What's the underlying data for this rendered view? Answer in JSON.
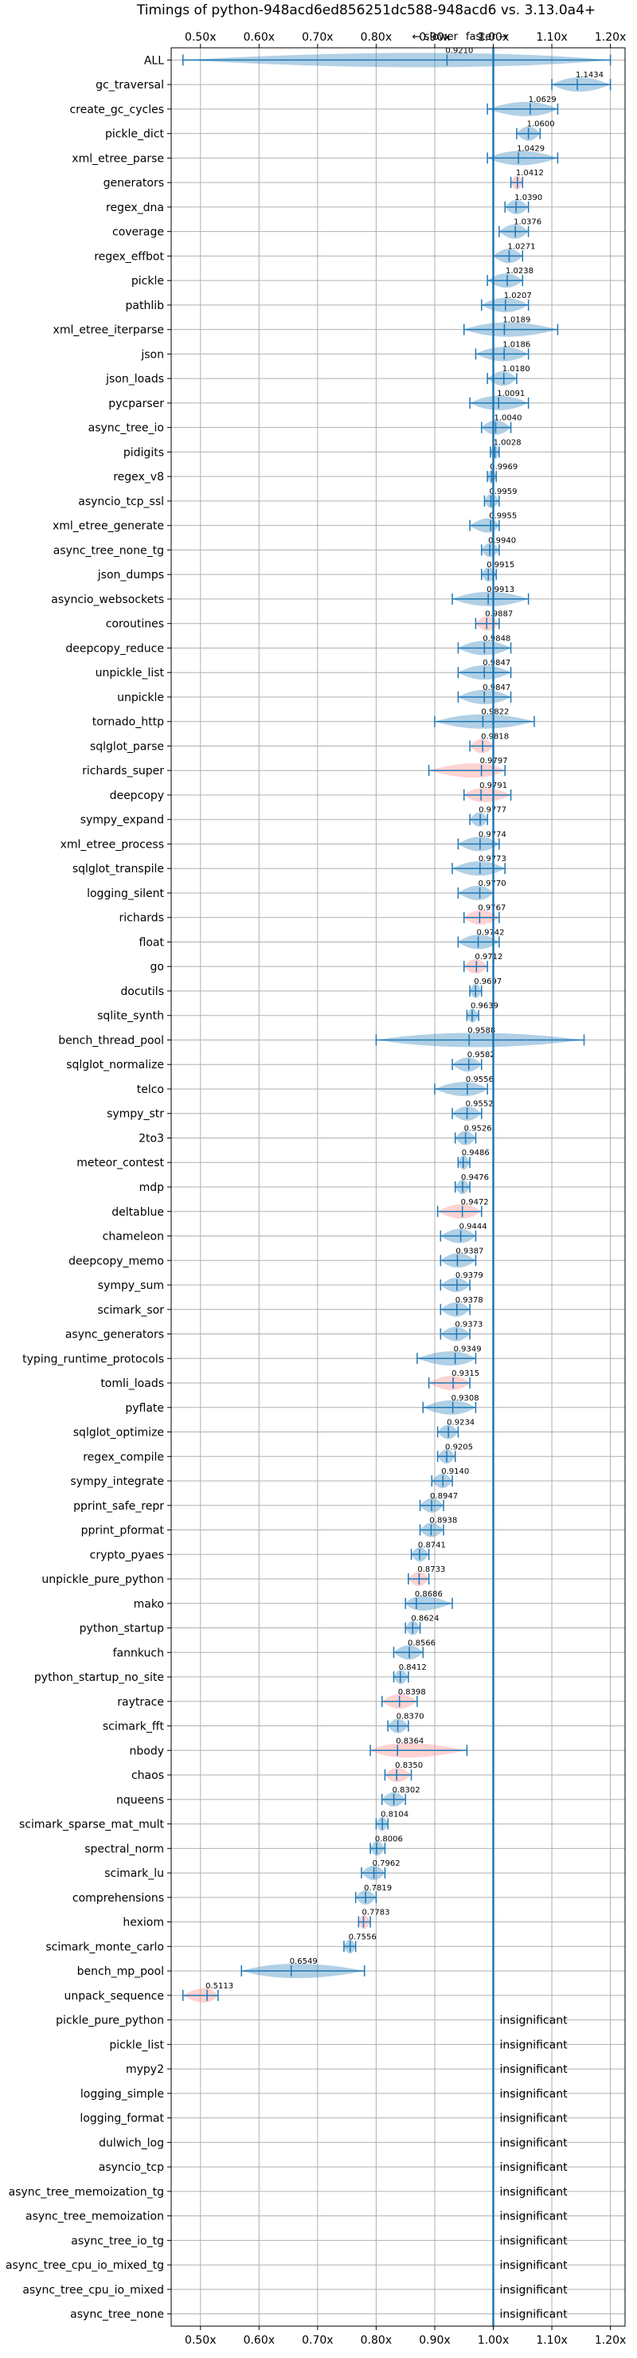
{
  "colors": {
    "normal": "#1f77b4",
    "highlight": "#ff7f7f",
    "grid": "#b0b0b0",
    "ref": "#1f77b4"
  },
  "chart_data": {
    "type": "violin",
    "title": "Timings of python-948acd6ed856251dc588-948acd6 vs. 3.13.0a4+",
    "subtitle_left": "← slower",
    "subtitle_right": "faster →",
    "xlim": [
      0.45,
      1.225
    ],
    "xticks": [
      0.5,
      0.6,
      0.7,
      0.8,
      0.9,
      1.0,
      1.1,
      1.2
    ],
    "xtick_labels": [
      "0.50x",
      "0.60x",
      "0.70x",
      "0.80x",
      "0.90x",
      "1.00x",
      "1.10x",
      "1.20x"
    ],
    "reference": 1.0,
    "grid": true,
    "insignificant_label": "insignificant",
    "benchmarks": [
      {
        "name": "ALL",
        "value": 0.921,
        "label": "0.9210",
        "lo": 0.47,
        "hi": 1.2,
        "width": 0.2,
        "highlight": false
      },
      {
        "name": "gc_traversal",
        "value": 1.1434,
        "label": "1.1434",
        "lo": 1.1,
        "hi": 1.2,
        "width": 0.3,
        "highlight": false
      },
      {
        "name": "create_gc_cycles",
        "value": 1.0629,
        "label": "1.0629",
        "lo": 0.99,
        "hi": 1.11,
        "width": 0.3,
        "highlight": false
      },
      {
        "name": "pickle_dict",
        "value": 1.06,
        "label": "1.0600",
        "lo": 1.04,
        "hi": 1.08,
        "width": 0.3,
        "highlight": false
      },
      {
        "name": "xml_etree_parse",
        "value": 1.0429,
        "label": "1.0429",
        "lo": 0.99,
        "hi": 1.11,
        "width": 0.3,
        "highlight": false
      },
      {
        "name": "generators",
        "value": 1.0412,
        "label": "1.0412",
        "lo": 1.03,
        "hi": 1.05,
        "width": 0.3,
        "highlight": true
      },
      {
        "name": "regex_dna",
        "value": 1.039,
        "label": "1.0390",
        "lo": 1.02,
        "hi": 1.06,
        "width": 0.3,
        "highlight": false
      },
      {
        "name": "coverage",
        "value": 1.0376,
        "label": "1.0376",
        "lo": 1.01,
        "hi": 1.06,
        "width": 0.3,
        "highlight": false
      },
      {
        "name": "regex_effbot",
        "value": 1.0271,
        "label": "1.0271",
        "lo": 1.0,
        "hi": 1.05,
        "width": 0.3,
        "highlight": false
      },
      {
        "name": "pickle",
        "value": 1.0238,
        "label": "1.0238",
        "lo": 0.99,
        "hi": 1.05,
        "width": 0.3,
        "highlight": false
      },
      {
        "name": "pathlib",
        "value": 1.0207,
        "label": "1.0207",
        "lo": 0.98,
        "hi": 1.06,
        "width": 0.3,
        "highlight": false
      },
      {
        "name": "xml_etree_iterparse",
        "value": 1.0189,
        "label": "1.0189",
        "lo": 0.95,
        "hi": 1.11,
        "width": 0.3,
        "highlight": false
      },
      {
        "name": "json",
        "value": 1.0186,
        "label": "1.0186",
        "lo": 0.97,
        "hi": 1.06,
        "width": 0.3,
        "highlight": false
      },
      {
        "name": "json_loads",
        "value": 1.018,
        "label": "1.0180",
        "lo": 0.99,
        "hi": 1.04,
        "width": 0.3,
        "highlight": false
      },
      {
        "name": "pycparser",
        "value": 1.0091,
        "label": "1.0091",
        "lo": 0.96,
        "hi": 1.06,
        "width": 0.3,
        "highlight": false
      },
      {
        "name": "async_tree_io",
        "value": 1.004,
        "label": "1.0040",
        "lo": 0.98,
        "hi": 1.03,
        "width": 0.3,
        "highlight": false
      },
      {
        "name": "pidigits",
        "value": 1.0028,
        "label": "1.0028",
        "lo": 0.995,
        "hi": 1.01,
        "width": 0.3,
        "highlight": false
      },
      {
        "name": "regex_v8",
        "value": 0.9969,
        "label": "0.9969",
        "lo": 0.99,
        "hi": 1.005,
        "width": 0.3,
        "highlight": false
      },
      {
        "name": "asyncio_tcp_ssl",
        "value": 0.9959,
        "label": "0.9959",
        "lo": 0.985,
        "hi": 1.01,
        "width": 0.3,
        "highlight": false
      },
      {
        "name": "xml_etree_generate",
        "value": 0.9955,
        "label": "0.9955",
        "lo": 0.96,
        "hi": 1.01,
        "width": 0.3,
        "highlight": false
      },
      {
        "name": "async_tree_none_tg",
        "value": 0.994,
        "label": "0.9940",
        "lo": 0.98,
        "hi": 1.01,
        "width": 0.3,
        "highlight": false
      },
      {
        "name": "json_dumps",
        "value": 0.9915,
        "label": "0.9915",
        "lo": 0.98,
        "hi": 1.005,
        "width": 0.3,
        "highlight": false
      },
      {
        "name": "asyncio_websockets",
        "value": 0.9913,
        "label": "0.9913",
        "lo": 0.93,
        "hi": 1.06,
        "width": 0.3,
        "highlight": false
      },
      {
        "name": "coroutines",
        "value": 0.9887,
        "label": "0.9887",
        "lo": 0.97,
        "hi": 1.01,
        "width": 0.3,
        "highlight": true
      },
      {
        "name": "deepcopy_reduce",
        "value": 0.9848,
        "label": "0.9848",
        "lo": 0.94,
        "hi": 1.03,
        "width": 0.3,
        "highlight": false
      },
      {
        "name": "unpickle_list",
        "value": 0.9847,
        "label": "0.9847",
        "lo": 0.94,
        "hi": 1.03,
        "width": 0.3,
        "highlight": false
      },
      {
        "name": "unpickle",
        "value": 0.9847,
        "label": "0.9847",
        "lo": 0.94,
        "hi": 1.03,
        "width": 0.3,
        "highlight": false
      },
      {
        "name": "tornado_http",
        "value": 0.9822,
        "label": "0.9822",
        "lo": 0.9,
        "hi": 1.07,
        "width": 0.3,
        "highlight": false
      },
      {
        "name": "sqlglot_parse",
        "value": 0.9818,
        "label": "0.9818",
        "lo": 0.96,
        "hi": 1.0,
        "width": 0.3,
        "highlight": true
      },
      {
        "name": "richards_super",
        "value": 0.9797,
        "label": "0.9797",
        "lo": 0.89,
        "hi": 1.02,
        "width": 0.3,
        "highlight": true
      },
      {
        "name": "deepcopy",
        "value": 0.9791,
        "label": "0.9791",
        "lo": 0.95,
        "hi": 1.03,
        "width": 0.3,
        "highlight": true
      },
      {
        "name": "sympy_expand",
        "value": 0.9777,
        "label": "0.9777",
        "lo": 0.96,
        "hi": 0.99,
        "width": 0.3,
        "highlight": false
      },
      {
        "name": "xml_etree_process",
        "value": 0.9774,
        "label": "0.9774",
        "lo": 0.94,
        "hi": 1.01,
        "width": 0.3,
        "highlight": false
      },
      {
        "name": "sqlglot_transpile",
        "value": 0.9773,
        "label": "0.9773",
        "lo": 0.93,
        "hi": 1.02,
        "width": 0.3,
        "highlight": false
      },
      {
        "name": "logging_silent",
        "value": 0.977,
        "label": "0.9770",
        "lo": 0.94,
        "hi": 1.0,
        "width": 0.3,
        "highlight": false
      },
      {
        "name": "richards",
        "value": 0.9767,
        "label": "0.9767",
        "lo": 0.95,
        "hi": 1.01,
        "width": 0.3,
        "highlight": true
      },
      {
        "name": "float",
        "value": 0.9742,
        "label": "0.9742",
        "lo": 0.94,
        "hi": 1.01,
        "width": 0.3,
        "highlight": false
      },
      {
        "name": "go",
        "value": 0.9712,
        "label": "0.9712",
        "lo": 0.95,
        "hi": 0.99,
        "width": 0.3,
        "highlight": true
      },
      {
        "name": "docutils",
        "value": 0.9697,
        "label": "0.9697",
        "lo": 0.96,
        "hi": 0.98,
        "width": 0.3,
        "highlight": false
      },
      {
        "name": "sqlite_synth",
        "value": 0.9639,
        "label": "0.9639",
        "lo": 0.955,
        "hi": 0.975,
        "width": 0.3,
        "highlight": false
      },
      {
        "name": "bench_thread_pool",
        "value": 0.9588,
        "label": "0.9588",
        "lo": 0.8,
        "hi": 1.155,
        "width": 0.3,
        "highlight": false
      },
      {
        "name": "sqlglot_normalize",
        "value": 0.9582,
        "label": "0.9582",
        "lo": 0.93,
        "hi": 0.98,
        "width": 0.3,
        "highlight": false
      },
      {
        "name": "telco",
        "value": 0.9556,
        "label": "0.9556",
        "lo": 0.9,
        "hi": 0.99,
        "width": 0.3,
        "highlight": false
      },
      {
        "name": "sympy_str",
        "value": 0.9552,
        "label": "0.9552",
        "lo": 0.93,
        "hi": 0.98,
        "width": 0.3,
        "highlight": false
      },
      {
        "name": "2to3",
        "value": 0.9526,
        "label": "0.9526",
        "lo": 0.935,
        "hi": 0.97,
        "width": 0.3,
        "highlight": false
      },
      {
        "name": "meteor_contest",
        "value": 0.9486,
        "label": "0.9486",
        "lo": 0.94,
        "hi": 0.96,
        "width": 0.3,
        "highlight": false
      },
      {
        "name": "mdp",
        "value": 0.9476,
        "label": "0.9476",
        "lo": 0.935,
        "hi": 0.96,
        "width": 0.3,
        "highlight": false
      },
      {
        "name": "deltablue",
        "value": 0.9472,
        "label": "0.9472",
        "lo": 0.905,
        "hi": 0.98,
        "width": 0.3,
        "highlight": true
      },
      {
        "name": "chameleon",
        "value": 0.9444,
        "label": "0.9444",
        "lo": 0.91,
        "hi": 0.97,
        "width": 0.3,
        "highlight": false
      },
      {
        "name": "deepcopy_memo",
        "value": 0.9387,
        "label": "0.9387",
        "lo": 0.91,
        "hi": 0.97,
        "width": 0.3,
        "highlight": false
      },
      {
        "name": "sympy_sum",
        "value": 0.9379,
        "label": "0.9379",
        "lo": 0.91,
        "hi": 0.96,
        "width": 0.3,
        "highlight": false
      },
      {
        "name": "scimark_sor",
        "value": 0.9378,
        "label": "0.9378",
        "lo": 0.91,
        "hi": 0.96,
        "width": 0.3,
        "highlight": false
      },
      {
        "name": "async_generators",
        "value": 0.9373,
        "label": "0.9373",
        "lo": 0.91,
        "hi": 0.96,
        "width": 0.3,
        "highlight": false
      },
      {
        "name": "typing_runtime_protocols",
        "value": 0.9349,
        "label": "0.9349",
        "lo": 0.87,
        "hi": 0.97,
        "width": 0.3,
        "highlight": false
      },
      {
        "name": "tomli_loads",
        "value": 0.9315,
        "label": "0.9315",
        "lo": 0.89,
        "hi": 0.96,
        "width": 0.3,
        "highlight": true
      },
      {
        "name": "pyflate",
        "value": 0.9308,
        "label": "0.9308",
        "lo": 0.88,
        "hi": 0.97,
        "width": 0.3,
        "highlight": false
      },
      {
        "name": "sqlglot_optimize",
        "value": 0.9234,
        "label": "0.9234",
        "lo": 0.905,
        "hi": 0.94,
        "width": 0.3,
        "highlight": false
      },
      {
        "name": "regex_compile",
        "value": 0.9205,
        "label": "0.9205",
        "lo": 0.905,
        "hi": 0.935,
        "width": 0.3,
        "highlight": false
      },
      {
        "name": "sympy_integrate",
        "value": 0.914,
        "label": "0.9140",
        "lo": 0.895,
        "hi": 0.93,
        "width": 0.3,
        "highlight": false
      },
      {
        "name": "pprint_safe_repr",
        "value": 0.8947,
        "label": "0.8947",
        "lo": 0.875,
        "hi": 0.915,
        "width": 0.3,
        "highlight": false
      },
      {
        "name": "pprint_pformat",
        "value": 0.8938,
        "label": "0.8938",
        "lo": 0.875,
        "hi": 0.915,
        "width": 0.3,
        "highlight": false
      },
      {
        "name": "crypto_pyaes",
        "value": 0.8741,
        "label": "0.8741",
        "lo": 0.86,
        "hi": 0.89,
        "width": 0.3,
        "highlight": false
      },
      {
        "name": "unpickle_pure_python",
        "value": 0.8733,
        "label": "0.8733",
        "lo": 0.855,
        "hi": 0.89,
        "width": 0.3,
        "highlight": true
      },
      {
        "name": "mako",
        "value": 0.8686,
        "label": "0.8686",
        "lo": 0.85,
        "hi": 0.93,
        "width": 0.3,
        "highlight": false
      },
      {
        "name": "python_startup",
        "value": 0.8624,
        "label": "0.8624",
        "lo": 0.85,
        "hi": 0.875,
        "width": 0.3,
        "highlight": false
      },
      {
        "name": "fannkuch",
        "value": 0.8566,
        "label": "0.8566",
        "lo": 0.83,
        "hi": 0.88,
        "width": 0.3,
        "highlight": false
      },
      {
        "name": "python_startup_no_site",
        "value": 0.8412,
        "label": "0.8412",
        "lo": 0.83,
        "hi": 0.855,
        "width": 0.3,
        "highlight": false
      },
      {
        "name": "raytrace",
        "value": 0.8398,
        "label": "0.8398",
        "lo": 0.81,
        "hi": 0.87,
        "width": 0.3,
        "highlight": true
      },
      {
        "name": "scimark_fft",
        "value": 0.837,
        "label": "0.8370",
        "lo": 0.82,
        "hi": 0.855,
        "width": 0.3,
        "highlight": false
      },
      {
        "name": "nbody",
        "value": 0.8364,
        "label": "0.8364",
        "lo": 0.79,
        "hi": 0.955,
        "width": 0.3,
        "highlight": true
      },
      {
        "name": "chaos",
        "value": 0.835,
        "label": "0.8350",
        "lo": 0.815,
        "hi": 0.86,
        "width": 0.3,
        "highlight": true
      },
      {
        "name": "nqueens",
        "value": 0.8302,
        "label": "0.8302",
        "lo": 0.81,
        "hi": 0.85,
        "width": 0.3,
        "highlight": false
      },
      {
        "name": "scimark_sparse_mat_mult",
        "value": 0.8104,
        "label": "0.8104",
        "lo": 0.8,
        "hi": 0.82,
        "width": 0.3,
        "highlight": false
      },
      {
        "name": "spectral_norm",
        "value": 0.8006,
        "label": "0.8006",
        "lo": 0.79,
        "hi": 0.815,
        "width": 0.3,
        "highlight": false
      },
      {
        "name": "scimark_lu",
        "value": 0.7962,
        "label": "0.7962",
        "lo": 0.775,
        "hi": 0.815,
        "width": 0.3,
        "highlight": false
      },
      {
        "name": "comprehensions",
        "value": 0.7819,
        "label": "0.7819",
        "lo": 0.765,
        "hi": 0.8,
        "width": 0.3,
        "highlight": false
      },
      {
        "name": "hexiom",
        "value": 0.7783,
        "label": "0.7783",
        "lo": 0.77,
        "hi": 0.79,
        "width": 0.3,
        "highlight": true
      },
      {
        "name": "scimark_monte_carlo",
        "value": 0.7556,
        "label": "0.7556",
        "lo": 0.745,
        "hi": 0.765,
        "width": 0.3,
        "highlight": false
      },
      {
        "name": "bench_mp_pool",
        "value": 0.6549,
        "label": "0.6549",
        "lo": 0.57,
        "hi": 0.78,
        "width": 0.3,
        "highlight": false
      },
      {
        "name": "unpack_sequence",
        "value": 0.5113,
        "label": "0.5113",
        "lo": 0.47,
        "hi": 0.53,
        "width": 0.3,
        "highlight": true
      },
      {
        "name": "pickle_pure_python",
        "value": null,
        "label": "insignificant"
      },
      {
        "name": "pickle_list",
        "value": null,
        "label": "insignificant"
      },
      {
        "name": "mypy2",
        "value": null,
        "label": "insignificant"
      },
      {
        "name": "logging_simple",
        "value": null,
        "label": "insignificant"
      },
      {
        "name": "logging_format",
        "value": null,
        "label": "insignificant"
      },
      {
        "name": "dulwich_log",
        "value": null,
        "label": "insignificant"
      },
      {
        "name": "asyncio_tcp",
        "value": null,
        "label": "insignificant"
      },
      {
        "name": "async_tree_memoization_tg",
        "value": null,
        "label": "insignificant"
      },
      {
        "name": "async_tree_memoization",
        "value": null,
        "label": "insignificant"
      },
      {
        "name": "async_tree_io_tg",
        "value": null,
        "label": "insignificant"
      },
      {
        "name": "async_tree_cpu_io_mixed_tg",
        "value": null,
        "label": "insignificant"
      },
      {
        "name": "async_tree_cpu_io_mixed",
        "value": null,
        "label": "insignificant"
      },
      {
        "name": "async_tree_none",
        "value": null,
        "label": "insignificant"
      }
    ]
  }
}
